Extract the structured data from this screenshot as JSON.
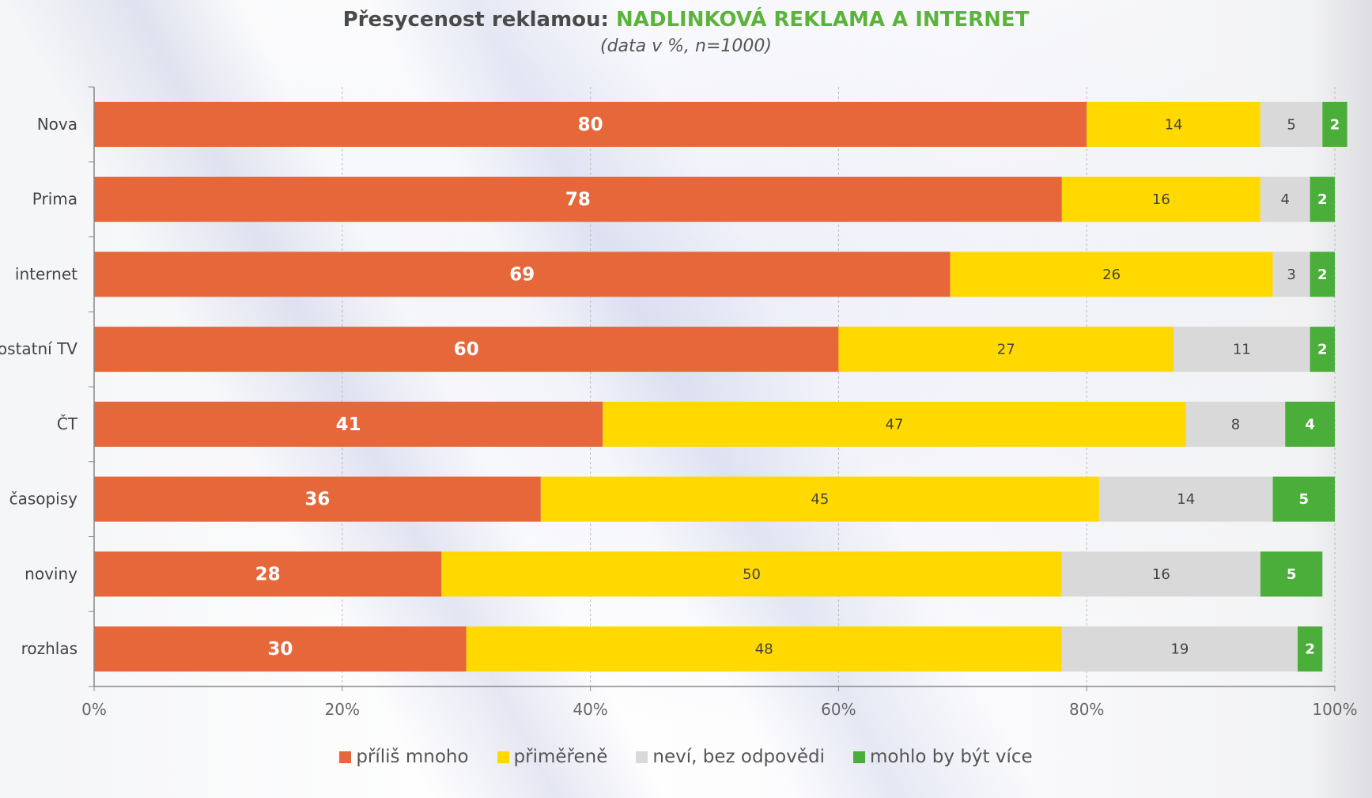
{
  "title": {
    "prefix": "Přesycenost reklamou: ",
    "highlight": "NADLINKOVÁ REKLAMA A INTERNET",
    "subtitle": "(data v %, n=1000)"
  },
  "colors": {
    "title_text": "#4a4a4a",
    "title_accent": "#5cb33c",
    "axis": "#888888",
    "gridline": "#bbbbbb"
  },
  "chart_data": {
    "type": "bar",
    "orientation": "horizontal",
    "stacked": "percent",
    "categories": [
      "Nova",
      "Prima",
      "internet",
      "ostatní TV",
      "ČT",
      "časopisy",
      "noviny",
      "rozhlas"
    ],
    "series": [
      {
        "name": "příliš mnoho",
        "color": "#e5673a",
        "label_color": "#ffffff",
        "values": [
          80,
          78,
          69,
          60,
          41,
          36,
          28,
          30
        ]
      },
      {
        "name": "přiměřeně",
        "color": "#ffd900",
        "label_color": "#444444",
        "values": [
          14,
          16,
          26,
          27,
          47,
          45,
          50,
          48
        ]
      },
      {
        "name": "neví, bez odpovědi",
        "color": "#d9d9d9",
        "label_color": "#444444",
        "values": [
          5,
          4,
          3,
          11,
          8,
          14,
          16,
          19
        ]
      },
      {
        "name": "mohlo by být více",
        "color": "#4cae3a",
        "label_color": "#ffffff",
        "values": [
          2,
          2,
          2,
          2,
          4,
          5,
          5,
          2
        ]
      }
    ],
    "x_ticks": [
      "0%",
      "20%",
      "40%",
      "60%",
      "80%",
      "100%"
    ],
    "xlim": [
      0,
      100
    ],
    "grid": "vertical dashed",
    "legend_position": "bottom"
  }
}
